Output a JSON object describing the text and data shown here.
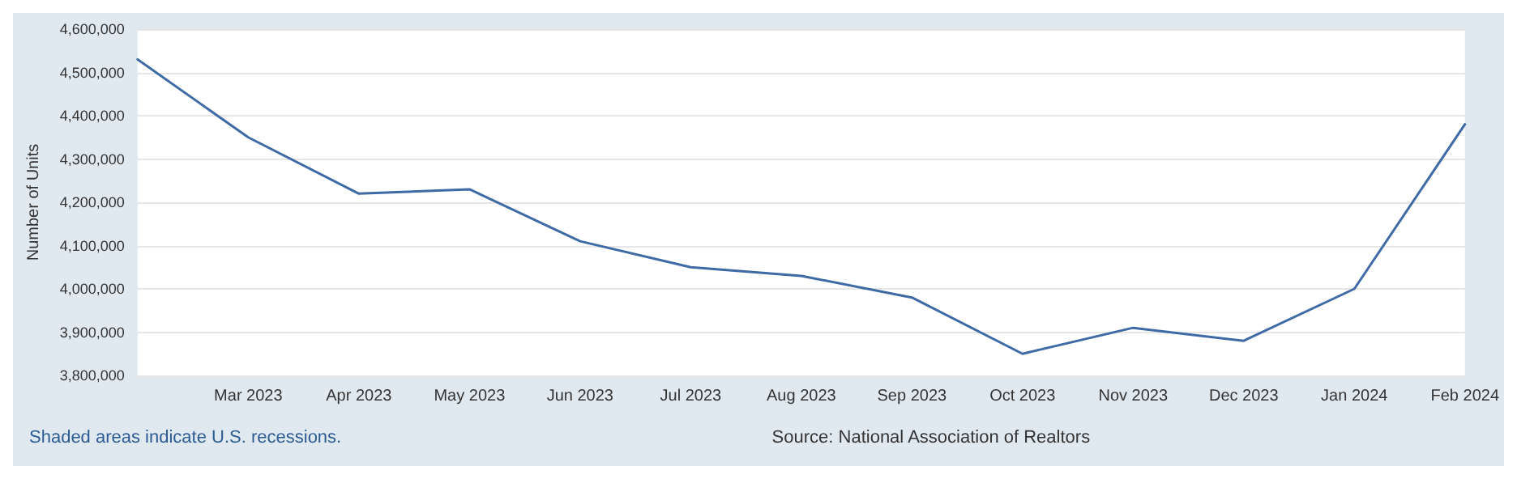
{
  "chart_data": {
    "type": "line",
    "ylabel": "Number of Units",
    "categories": [
      null,
      "Mar 2023",
      "Apr 2023",
      "May 2023",
      "Jun 2023",
      "Jul 2023",
      "Aug 2023",
      "Sep 2023",
      "Oct 2023",
      "Nov 2023",
      "Dec 2023",
      "Jan 2024",
      "Feb 2024"
    ],
    "series": [
      {
        "color": "#3e6aa5",
        "values": [
          4530000,
          4350000,
          4220000,
          4230000,
          4110000,
          4050000,
          4030000,
          3980000,
          3850000,
          3910000,
          3880000,
          4000000,
          4380000
        ]
      }
    ],
    "ylim": [
      3800000,
      4600000
    ],
    "yticks": [
      {
        "value": 3800000,
        "label": "3,800,000"
      },
      {
        "value": 3900000,
        "label": "3,900,000"
      },
      {
        "value": 4000000,
        "label": "4,000,000"
      },
      {
        "value": 4100000,
        "label": "4,100,000"
      },
      {
        "value": 4200000,
        "label": "4,200,000"
      },
      {
        "value": 4300000,
        "label": "4,300,000"
      },
      {
        "value": 4400000,
        "label": "4,400,000"
      },
      {
        "value": 4500000,
        "label": "4,500,000"
      },
      {
        "value": 4600000,
        "label": "4,600,000"
      }
    ],
    "grid": "y",
    "marker": "none",
    "line_style": "solid",
    "annotations": [
      "Shaded areas indicate U.S. recessions.",
      "Source: National Association of Realtors"
    ]
  }
}
